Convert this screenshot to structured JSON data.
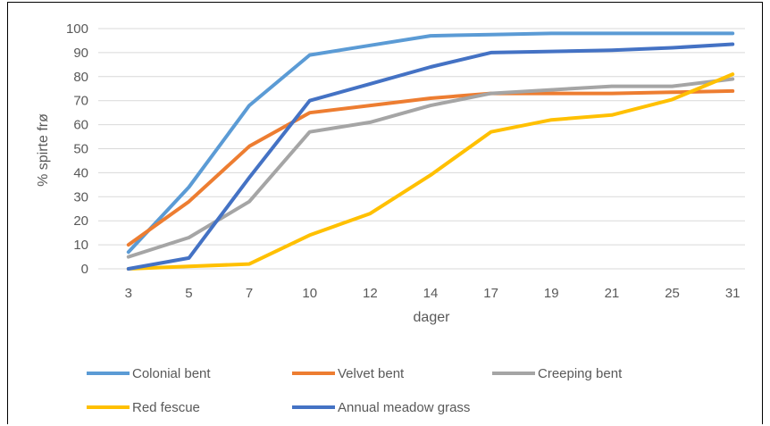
{
  "chart_data": {
    "type": "line",
    "xlabel": "dager",
    "ylabel": "% spirte frø",
    "categories": [
      "3",
      "5",
      "7",
      "10",
      "12",
      "14",
      "17",
      "19",
      "21",
      "25",
      "31"
    ],
    "ylim": [
      0,
      100
    ],
    "yticks": [
      "0",
      "10",
      "20",
      "30",
      "40",
      "50",
      "60",
      "70",
      "80",
      "90",
      "100"
    ],
    "grid": true,
    "legend_position": "bottom",
    "series": [
      {
        "name": "Colonial bent",
        "color": "#5B9BD5",
        "values": [
          7,
          34,
          68,
          89,
          93,
          97,
          97.5,
          98,
          98,
          98,
          98
        ]
      },
      {
        "name": "Velvet bent",
        "color": "#ED7D31",
        "values": [
          10,
          28,
          51,
          65,
          68,
          71,
          73,
          73,
          73,
          73.5,
          74
        ]
      },
      {
        "name": "Creeping bent",
        "color": "#A5A5A5",
        "values": [
          5,
          13,
          28,
          57,
          61,
          68,
          73,
          74.5,
          76,
          76,
          79
        ]
      },
      {
        "name": "Red fescue",
        "color": "#FFC000",
        "values": [
          0,
          1,
          2,
          14,
          23,
          39,
          57,
          62,
          64,
          70.5,
          81
        ]
      },
      {
        "name": "Annual meadow grass",
        "color": "#4472C4",
        "values": [
          0,
          4.5,
          38,
          70,
          77,
          84,
          90,
          90.5,
          91,
          92,
          93.5
        ]
      }
    ]
  }
}
